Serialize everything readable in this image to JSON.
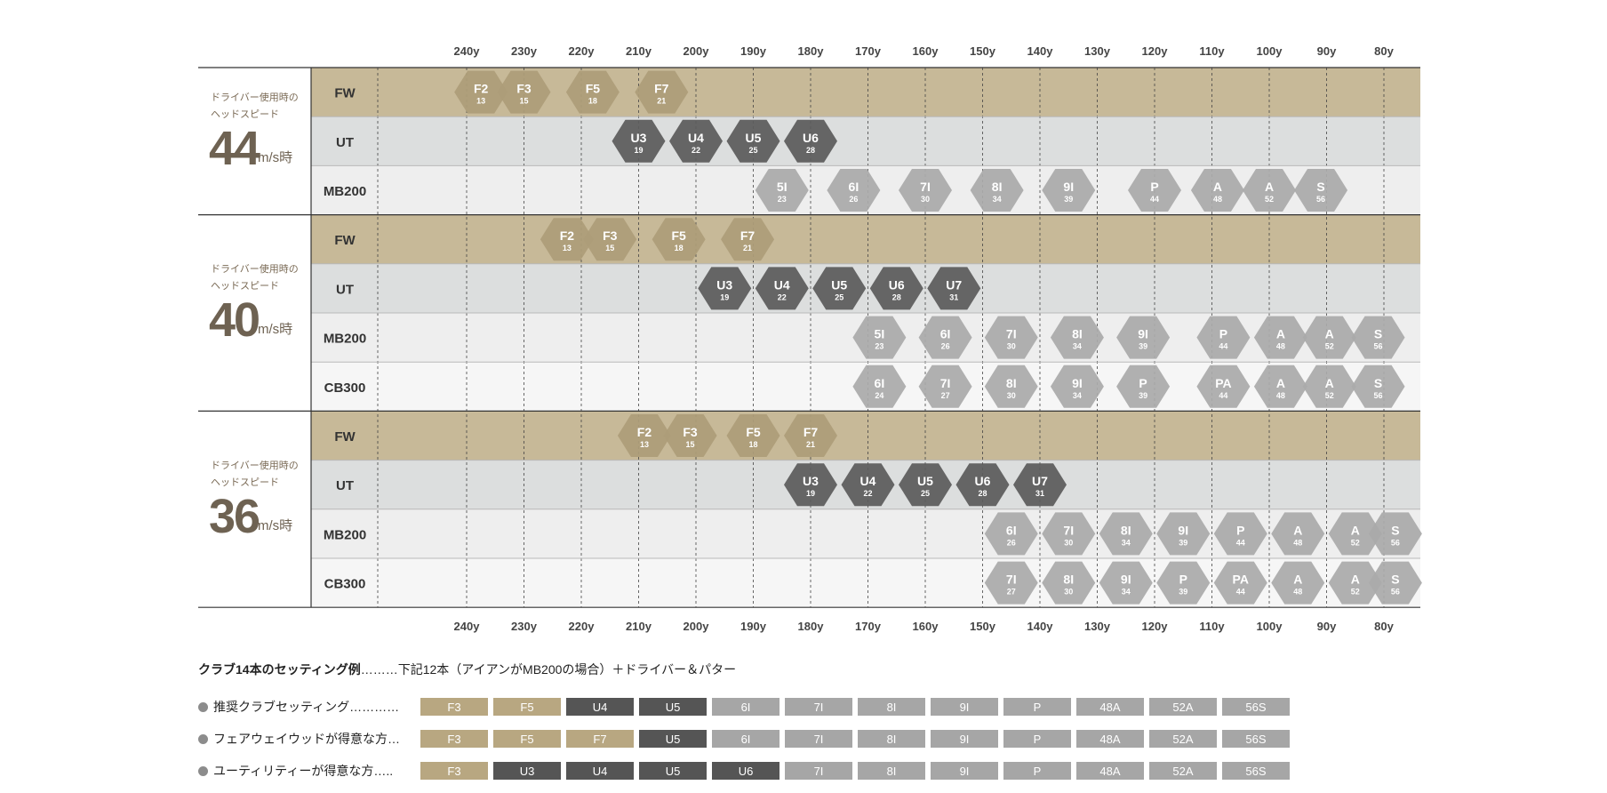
{
  "colors": {
    "fw_band": "#c7b998",
    "ut_band": "#dcdede",
    "iron_band_1": "#eeeeee",
    "iron_band_2": "#f6f6f6",
    "fw_hex": "#ad9d79",
    "ut_hex": "#5b5b5b",
    "iron_hex": "#aaaaaa",
    "heading_accent": "#6e6252"
  },
  "chart_data": {
    "type": "table",
    "x_ticks": [
      "240y",
      "230y",
      "220y",
      "210y",
      "200y",
      "190y",
      "180y",
      "170y",
      "160y",
      "150y",
      "140y",
      "130y",
      "120y",
      "110y",
      "100y",
      "90y",
      "80y"
    ],
    "sections": [
      {
        "subtitle_line1": "ドライバー使用時の",
        "subtitle_line2": "ヘッドスピード",
        "speed": "44",
        "unit": "m/s時",
        "rows": [
          {
            "label": "FW",
            "kind": "fw",
            "clubs": [
              {
                "name": "F2",
                "loft": "13",
                "x": 237.5
              },
              {
                "name": "F3",
                "loft": "15",
                "x": 230
              },
              {
                "name": "F5",
                "loft": "18",
                "x": 218
              },
              {
                "name": "F7",
                "loft": "21",
                "x": 206
              }
            ]
          },
          {
            "label": "UT",
            "kind": "ut",
            "clubs": [
              {
                "name": "U3",
                "loft": "19",
                "x": 210
              },
              {
                "name": "U4",
                "loft": "22",
                "x": 200
              },
              {
                "name": "U5",
                "loft": "25",
                "x": 190
              },
              {
                "name": "U6",
                "loft": "28",
                "x": 180
              }
            ]
          },
          {
            "label": "MB200",
            "kind": "iron",
            "clubs": [
              {
                "name": "5I",
                "loft": "23",
                "x": 185
              },
              {
                "name": "6I",
                "loft": "26",
                "x": 172.5
              },
              {
                "name": "7I",
                "loft": "30",
                "x": 160
              },
              {
                "name": "8I",
                "loft": "34",
                "x": 147.5
              },
              {
                "name": "9I",
                "loft": "39",
                "x": 135
              },
              {
                "name": "P",
                "loft": "44",
                "x": 120
              },
              {
                "name": "A",
                "loft": "48",
                "x": 109
              },
              {
                "name": "A",
                "loft": "52",
                "x": 100
              },
              {
                "name": "S",
                "loft": "56",
                "x": 91
              }
            ]
          }
        ]
      },
      {
        "subtitle_line1": "ドライバー使用時の",
        "subtitle_line2": "ヘッドスピード",
        "speed": "40",
        "unit": "m/s時",
        "rows": [
          {
            "label": "FW",
            "kind": "fw",
            "clubs": [
              {
                "name": "F2",
                "loft": "13",
                "x": 222.5
              },
              {
                "name": "F3",
                "loft": "15",
                "x": 215
              },
              {
                "name": "F5",
                "loft": "18",
                "x": 203
              },
              {
                "name": "F7",
                "loft": "21",
                "x": 191
              }
            ]
          },
          {
            "label": "UT",
            "kind": "ut",
            "clubs": [
              {
                "name": "U3",
                "loft": "19",
                "x": 195
              },
              {
                "name": "U4",
                "loft": "22",
                "x": 185
              },
              {
                "name": "U5",
                "loft": "25",
                "x": 175
              },
              {
                "name": "U6",
                "loft": "28",
                "x": 165
              },
              {
                "name": "U7",
                "loft": "31",
                "x": 155
              }
            ]
          },
          {
            "label": "MB200",
            "kind": "iron",
            "clubs": [
              {
                "name": "5I",
                "loft": "23",
                "x": 168
              },
              {
                "name": "6I",
                "loft": "26",
                "x": 156.5
              },
              {
                "name": "7I",
                "loft": "30",
                "x": 145
              },
              {
                "name": "8I",
                "loft": "34",
                "x": 133.5
              },
              {
                "name": "9I",
                "loft": "39",
                "x": 122
              },
              {
                "name": "P",
                "loft": "44",
                "x": 108
              },
              {
                "name": "A",
                "loft": "48",
                "x": 98
              },
              {
                "name": "A",
                "loft": "52",
                "x": 89.5
              },
              {
                "name": "S",
                "loft": "56",
                "x": 81
              }
            ]
          },
          {
            "label": "CB300",
            "kind": "iron",
            "clubs": [
              {
                "name": "6I",
                "loft": "24",
                "x": 168
              },
              {
                "name": "7I",
                "loft": "27",
                "x": 156.5
              },
              {
                "name": "8I",
                "loft": "30",
                "x": 145
              },
              {
                "name": "9I",
                "loft": "34",
                "x": 133.5
              },
              {
                "name": "P",
                "loft": "39",
                "x": 122
              },
              {
                "name": "PA",
                "loft": "44",
                "x": 108
              },
              {
                "name": "A",
                "loft": "48",
                "x": 98
              },
              {
                "name": "A",
                "loft": "52",
                "x": 89.5
              },
              {
                "name": "S",
                "loft": "56",
                "x": 81
              }
            ]
          }
        ]
      },
      {
        "subtitle_line1": "ドライバー使用時の",
        "subtitle_line2": "ヘッドスピード",
        "speed": "36",
        "unit": "m/s時",
        "rows": [
          {
            "label": "FW",
            "kind": "fw",
            "clubs": [
              {
                "name": "F2",
                "loft": "13",
                "x": 209
              },
              {
                "name": "F3",
                "loft": "15",
                "x": 201
              },
              {
                "name": "F5",
                "loft": "18",
                "x": 190
              },
              {
                "name": "F7",
                "loft": "21",
                "x": 180
              }
            ]
          },
          {
            "label": "UT",
            "kind": "ut",
            "clubs": [
              {
                "name": "U3",
                "loft": "19",
                "x": 180
              },
              {
                "name": "U4",
                "loft": "22",
                "x": 170
              },
              {
                "name": "U5",
                "loft": "25",
                "x": 160
              },
              {
                "name": "U6",
                "loft": "28",
                "x": 150
              },
              {
                "name": "U7",
                "loft": "31",
                "x": 140
              }
            ]
          },
          {
            "label": "MB200",
            "kind": "iron",
            "clubs": [
              {
                "name": "6I",
                "loft": "26",
                "x": 145
              },
              {
                "name": "7I",
                "loft": "30",
                "x": 135
              },
              {
                "name": "8I",
                "loft": "34",
                "x": 125
              },
              {
                "name": "9I",
                "loft": "39",
                "x": 115
              },
              {
                "name": "P",
                "loft": "44",
                "x": 105
              },
              {
                "name": "A",
                "loft": "48",
                "x": 95
              },
              {
                "name": "A",
                "loft": "52",
                "x": 85
              },
              {
                "name": "S",
                "loft": "56",
                "x": 78
              }
            ]
          },
          {
            "label": "CB300",
            "kind": "iron",
            "clubs": [
              {
                "name": "7I",
                "loft": "27",
                "x": 145
              },
              {
                "name": "8I",
                "loft": "30",
                "x": 135
              },
              {
                "name": "9I",
                "loft": "34",
                "x": 125
              },
              {
                "name": "P",
                "loft": "39",
                "x": 115
              },
              {
                "name": "PA",
                "loft": "44",
                "x": 105
              },
              {
                "name": "A",
                "loft": "48",
                "x": 95
              },
              {
                "name": "A",
                "loft": "52",
                "x": 85
              },
              {
                "name": "S",
                "loft": "56",
                "x": 78
              }
            ]
          }
        ]
      }
    ]
  },
  "settings": {
    "heading_bold": "クラブ14本のセッティング例",
    "heading_rest": "………下記12本（アイアンがMB200の場合）＋ドライバー＆パター",
    "rows": [
      {
        "label": "推奨クラブセッティング…………",
        "chips": [
          {
            "t": "F3",
            "k": "fw"
          },
          {
            "t": "F5",
            "k": "fw"
          },
          {
            "t": "U4",
            "k": "ut"
          },
          {
            "t": "U5",
            "k": "ut"
          },
          {
            "t": "6I",
            "k": "iron"
          },
          {
            "t": "7I",
            "k": "iron"
          },
          {
            "t": "8I",
            "k": "iron"
          },
          {
            "t": "9I",
            "k": "iron"
          },
          {
            "t": "P",
            "k": "iron"
          },
          {
            "t": "48A",
            "k": "iron"
          },
          {
            "t": "52A",
            "k": "iron"
          },
          {
            "t": "56S",
            "k": "iron"
          }
        ]
      },
      {
        "label": "フェアウェイウッドが得意な方…",
        "chips": [
          {
            "t": "F3",
            "k": "fw"
          },
          {
            "t": "F5",
            "k": "fw"
          },
          {
            "t": "F7",
            "k": "fw"
          },
          {
            "t": "U5",
            "k": "ut"
          },
          {
            "t": "6I",
            "k": "iron"
          },
          {
            "t": "7I",
            "k": "iron"
          },
          {
            "t": "8I",
            "k": "iron"
          },
          {
            "t": "9I",
            "k": "iron"
          },
          {
            "t": "P",
            "k": "iron"
          },
          {
            "t": "48A",
            "k": "iron"
          },
          {
            "t": "52A",
            "k": "iron"
          },
          {
            "t": "56S",
            "k": "iron"
          }
        ]
      },
      {
        "label": "ユーティリティーが得意な方…..",
        "chips": [
          {
            "t": "F3",
            "k": "fw"
          },
          {
            "t": "U3",
            "k": "ut"
          },
          {
            "t": "U4",
            "k": "ut"
          },
          {
            "t": "U5",
            "k": "ut"
          },
          {
            "t": "U6",
            "k": "ut"
          },
          {
            "t": "7I",
            "k": "iron"
          },
          {
            "t": "8I",
            "k": "iron"
          },
          {
            "t": "9I",
            "k": "iron"
          },
          {
            "t": "P",
            "k": "iron"
          },
          {
            "t": "48A",
            "k": "iron"
          },
          {
            "t": "52A",
            "k": "iron"
          },
          {
            "t": "56S",
            "k": "iron"
          }
        ]
      }
    ],
    "chip_colors": {
      "fw": "#b8a781",
      "ut": "#555555",
      "iron": "#a6a6a6"
    }
  }
}
